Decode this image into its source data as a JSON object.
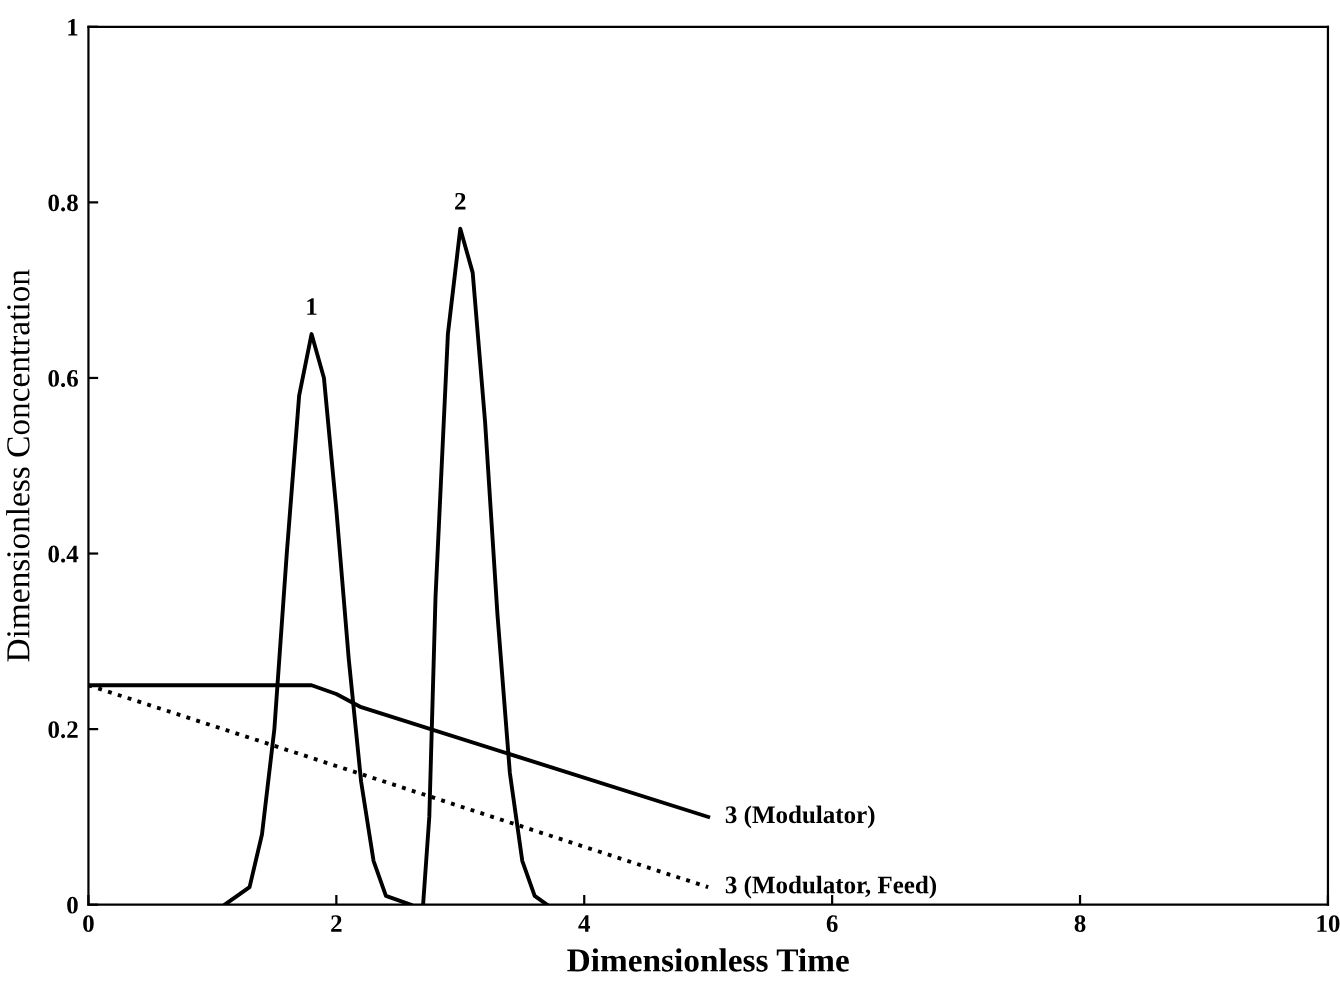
{
  "chart_data": {
    "type": "line",
    "xlabel": "Dimensionless Time",
    "ylabel": "Dimensionless Concentration",
    "xlim": [
      0,
      10
    ],
    "ylim": [
      0,
      1
    ],
    "xticks": [
      0,
      2,
      4,
      6,
      8,
      10
    ],
    "yticks": [
      0,
      0.2,
      0.4,
      0.6,
      0.8,
      1
    ],
    "grid": false,
    "legend": false,
    "marker": "none",
    "series": [
      {
        "name": "1",
        "color": "#000000",
        "line_style": "solid",
        "x": [
          1.1,
          1.3,
          1.4,
          1.5,
          1.6,
          1.7,
          1.8,
          1.9,
          2.0,
          2.1,
          2.2,
          2.3,
          2.4,
          2.6
        ],
        "values": [
          0,
          0.02,
          0.08,
          0.2,
          0.4,
          0.58,
          0.65,
          0.6,
          0.45,
          0.28,
          0.14,
          0.05,
          0.01,
          0
        ]
      },
      {
        "name": "2",
        "color": "#000000",
        "line_style": "solid",
        "x": [
          2.7,
          2.75,
          2.8,
          2.9,
          3.0,
          3.1,
          3.2,
          3.3,
          3.4,
          3.5,
          3.6,
          3.7
        ],
        "values": [
          0,
          0.1,
          0.35,
          0.65,
          0.77,
          0.72,
          0.55,
          0.33,
          0.15,
          0.05,
          0.01,
          0
        ]
      },
      {
        "name": "3 (Modulator)",
        "color": "#000000",
        "line_style": "solid",
        "x": [
          0,
          1.8,
          2.0,
          2.2,
          5.0
        ],
        "values": [
          0.25,
          0.25,
          0.24,
          0.225,
          0.1
        ]
      },
      {
        "name": "3 (Modulator, Feed)",
        "color": "#000000",
        "line_style": "dotted",
        "x": [
          0,
          5.0
        ],
        "values": [
          0.25,
          0.02
        ]
      }
    ]
  }
}
